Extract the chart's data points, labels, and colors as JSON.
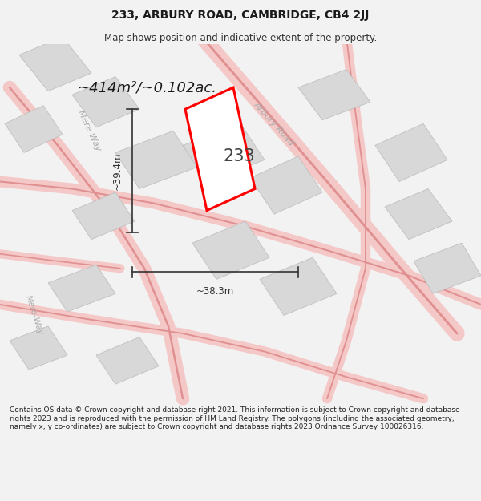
{
  "title_line1": "233, ARBURY ROAD, CAMBRIDGE, CB4 2JJ",
  "title_line2": "Map shows position and indicative extent of the property.",
  "footer_text": "Contains OS data © Crown copyright and database right 2021. This information is subject to Crown copyright and database rights 2023 and is reproduced with the permission of HM Land Registry. The polygons (including the associated geometry, namely x, y co-ordinates) are subject to Crown copyright and database rights 2023 Ordnance Survey 100026316.",
  "area_label": "~414m²/~0.102ac.",
  "number_label": "233",
  "dim_width": "~38.3m",
  "dim_height": "~39.4m",
  "bg_color": "#f2f2f2",
  "map_bg": "#f8f8f8",
  "plot_color": "#ff0000",
  "road_fill": "#f5c8c8",
  "road_edge": "#e09090",
  "building_fill": "#d8d8d8",
  "building_edge": "#c0c0c0",
  "dim_color": "#333333",
  "label_color": "#444444",
  "road_text_color": "#aaaaaa",
  "title_fontsize": 10,
  "subtitle_fontsize": 8.5,
  "footer_fontsize": 6.5,
  "area_fontsize": 13,
  "num_fontsize": 15,
  "dim_fontsize": 8.5,
  "road_fontsize": 8
}
